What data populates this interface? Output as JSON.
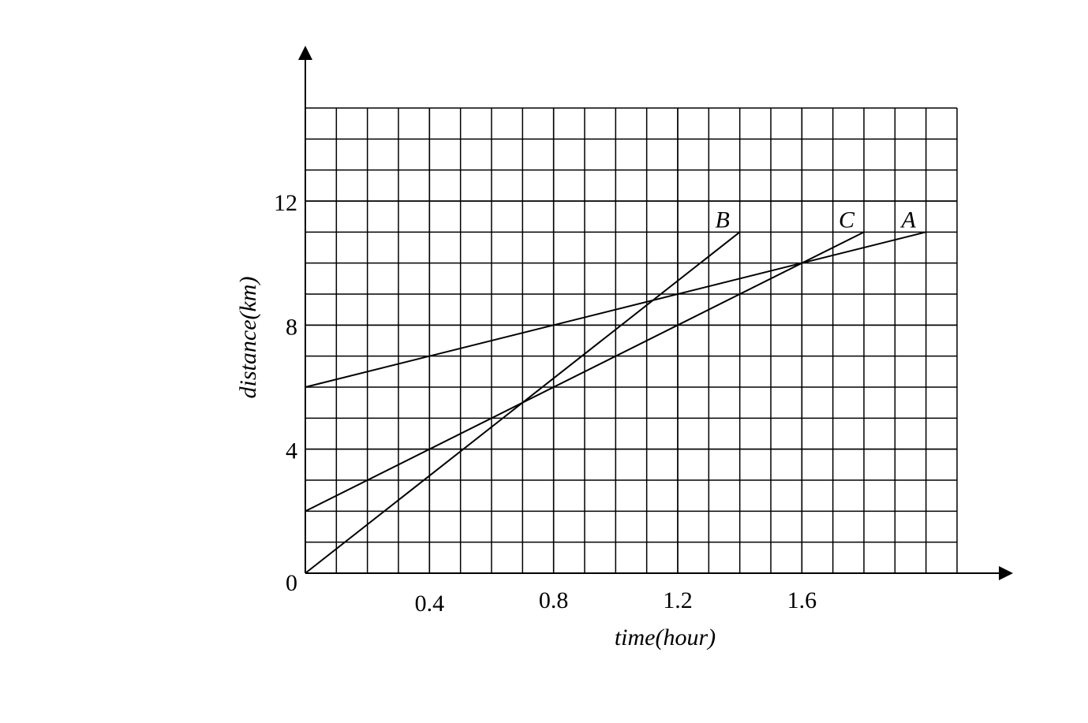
{
  "chart_data": {
    "type": "line",
    "x_label": "time(hour)",
    "y_label": "distance(km)",
    "xlim": [
      0,
      2.1
    ],
    "ylim": [
      0,
      15
    ],
    "xticks": [
      0.4,
      0.8,
      1.2,
      1.6
    ],
    "yticks": [
      0,
      4,
      8,
      12
    ],
    "grid": true,
    "series": [
      {
        "name": "A",
        "color": "#000000",
        "x": [
          0,
          2.0
        ],
        "values": [
          6,
          11
        ]
      },
      {
        "name": "B",
        "color": "#000000",
        "x": [
          0,
          1.4
        ],
        "values": [
          0,
          11
        ]
      },
      {
        "name": "C",
        "color": "#000000",
        "x": [
          0,
          1.8
        ],
        "values": [
          2,
          11
        ]
      }
    ]
  }
}
